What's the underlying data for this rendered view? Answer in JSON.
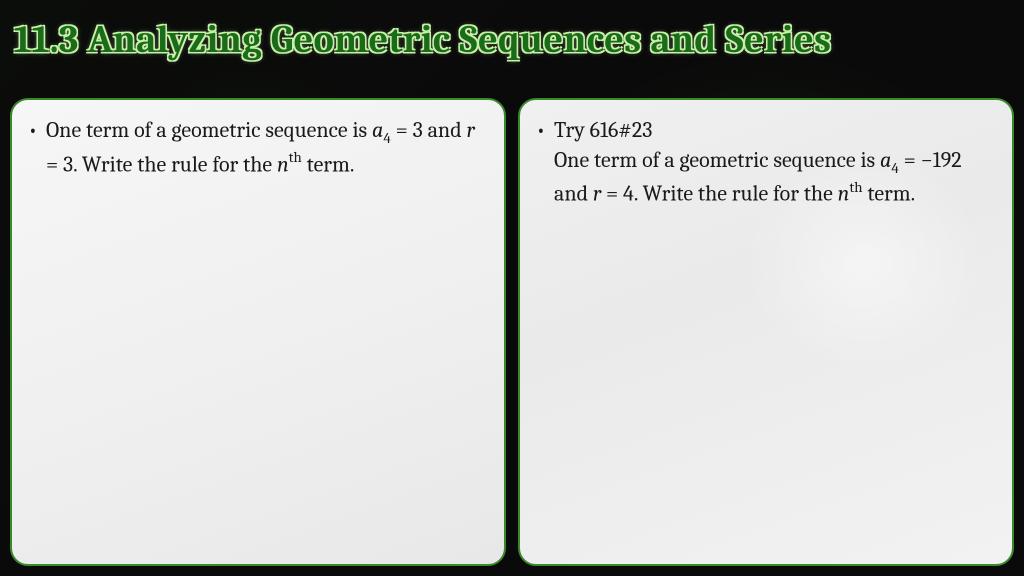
{
  "slide": {
    "title": "11.3 Analyzing Geometric Sequences and Series",
    "background_color": "#0a0a0a",
    "title_style": {
      "fontsize": 38,
      "font_weight": "bold",
      "fill_color": "#1a6b1a",
      "outline_color": "#c8f0a8"
    },
    "panels": [
      {
        "id": "left",
        "border_color": "#3a8a2a",
        "background_color": "#f2f2f2",
        "border_radius": 18,
        "content": {
          "text_plain": "One term of a geometric sequence is a4 = 3 and r = 3.  Write the rule for the nth term.",
          "segments": [
            {
              "t": "One term of a geometric sequence is "
            },
            {
              "t": "a",
              "italic": true
            },
            {
              "t": "4",
              "sub": true
            },
            {
              "t": " = 3 and "
            },
            {
              "t": "r",
              "italic": true
            },
            {
              "t": " = 3.  Write the rule for the "
            },
            {
              "t": "n",
              "italic": true
            },
            {
              "t": "th",
              "sup": true
            },
            {
              "t": " term."
            }
          ]
        }
      },
      {
        "id": "right",
        "border_color": "#3a8a2a",
        "background_color": "#eeeeee",
        "border_radius": 18,
        "content": {
          "text_plain": "Try 616#23\nOne term of a geometric sequence is a4 = −192 and r = 4.  Write the rule for the nth term.",
          "segments": [
            {
              "t": "Try 616#23"
            },
            {
              "br": true
            },
            {
              "t": "One term of a geometric sequence is "
            },
            {
              "t": "a",
              "italic": true
            },
            {
              "t": "4",
              "sub": true
            },
            {
              "t": " = −192 and "
            },
            {
              "t": "r",
              "italic": true
            },
            {
              "t": " = 4.  Write the rule for the "
            },
            {
              "t": "n",
              "italic": true
            },
            {
              "t": "th",
              "sup": true
            },
            {
              "t": " term."
            }
          ]
        }
      }
    ],
    "body_fontsize": 22,
    "body_color": "#1a1a1a"
  }
}
